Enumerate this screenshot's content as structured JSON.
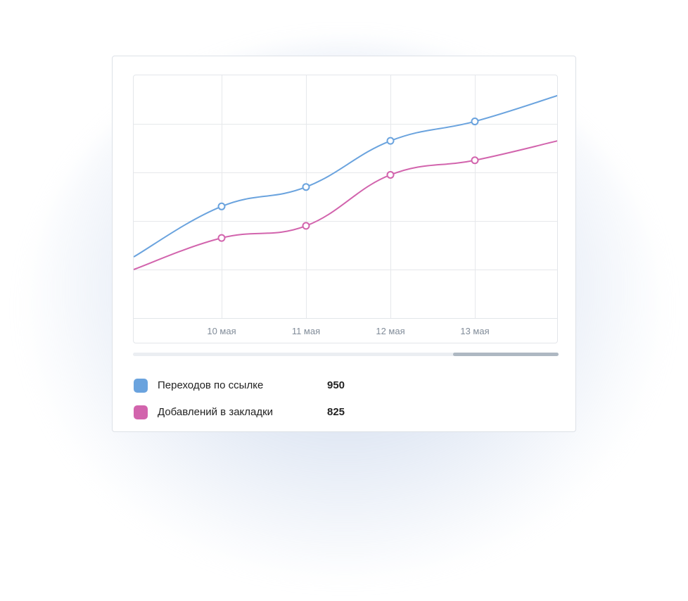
{
  "colors": {
    "series_1": "#6aa3de",
    "series_2": "#d264ad"
  },
  "chart_data": {
    "type": "line",
    "x": [
      "10 мая",
      "11 мая",
      "12 мая",
      "13 мая"
    ],
    "series": [
      {
        "name": "Переходов по ссылке",
        "values": [
          63,
          67,
          76.5,
          80.5
        ],
        "total": "950"
      },
      {
        "name": "Добавлений в закладки",
        "values": [
          56.5,
          59,
          69.5,
          72.5
        ],
        "total": "825"
      }
    ],
    "grid": true,
    "legend": "bottom-left"
  }
}
